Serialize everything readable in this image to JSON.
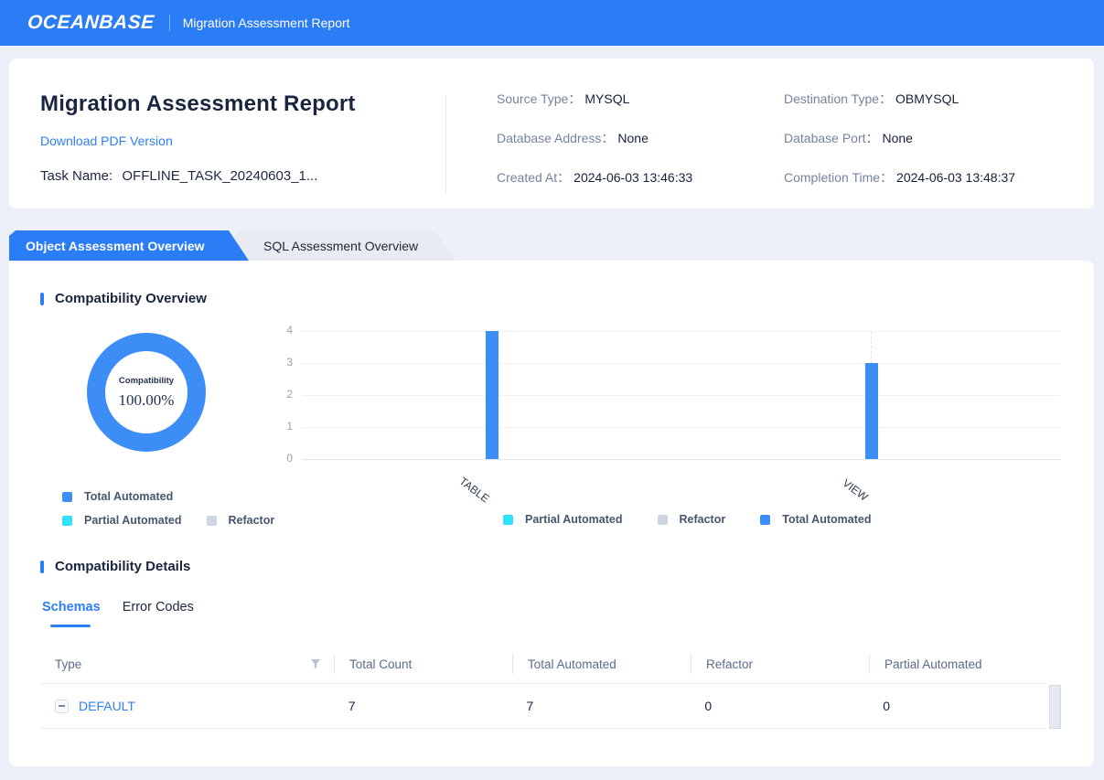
{
  "topbar": {
    "logo": "OCEANBASE",
    "title": "Migration Assessment Report"
  },
  "report_card": {
    "title": "Migration Assessment Report",
    "download_link": "Download PDF Version",
    "task_name_label": "Task Name:",
    "task_name_value": "OFFLINE_TASK_20240603_1...",
    "meta": [
      {
        "label": "Source Type：",
        "value": "MYSQL"
      },
      {
        "label": "Destination Type：",
        "value": "OBMYSQL"
      },
      {
        "label": "Database Address：",
        "value": "None"
      },
      {
        "label": "Database Port：",
        "value": "None"
      },
      {
        "label": "Created At：",
        "value": "2024-06-03 13:46:33"
      },
      {
        "label": "Completion Time：",
        "value": "2024-06-03 13:48:37"
      }
    ]
  },
  "tabs": {
    "active": "Object Assessment Overview",
    "inactive": "SQL Assessment Overview"
  },
  "overview": {
    "section_title": "Compatibility Overview",
    "donut": {
      "label": "Compatibility",
      "value": "100.00%",
      "color": "#3d8df7"
    },
    "donut_legend": [
      {
        "label": "Total Automated",
        "color": "#3d8df7"
      },
      {
        "label": "Partial Automated",
        "color": "#31e2fe"
      },
      {
        "label": "Refactor",
        "color": "#cdd5e2"
      }
    ],
    "bar_legend": [
      {
        "label": "Partial Automated",
        "color": "#31e2fe"
      },
      {
        "label": "Refactor",
        "color": "#cdd5e2"
      },
      {
        "label": "Total Automated",
        "color": "#3d8df7"
      }
    ]
  },
  "chart_data": {
    "type": "bar",
    "categories": [
      "TABLE",
      "VIEW"
    ],
    "series": [
      {
        "name": "Total Automated",
        "color": "#3d8df7",
        "values": [
          4,
          3
        ]
      },
      {
        "name": "Partial Automated",
        "color": "#31e2fe",
        "values": [
          0,
          0
        ]
      },
      {
        "name": "Refactor",
        "color": "#cdd5e2",
        "values": [
          0,
          0
        ]
      }
    ],
    "ylim": [
      0,
      4
    ],
    "yticks": [
      0,
      1,
      2,
      3,
      4
    ],
    "grid": true,
    "legend_position": "bottom",
    "title": "",
    "xlabel": "",
    "ylabel": ""
  },
  "details": {
    "section_title": "Compatibility Details",
    "tabs": [
      "Schemas",
      "Error Codes"
    ],
    "active_tab": "Schemas",
    "table": {
      "columns": [
        "Type",
        "Total Count",
        "Total Automated",
        "Refactor",
        "Partial Automated"
      ],
      "rows": [
        {
          "type": "DEFAULT",
          "total_count": "7",
          "total_automated": "7",
          "refactor": "0",
          "partial_automated": "0"
        }
      ]
    }
  }
}
